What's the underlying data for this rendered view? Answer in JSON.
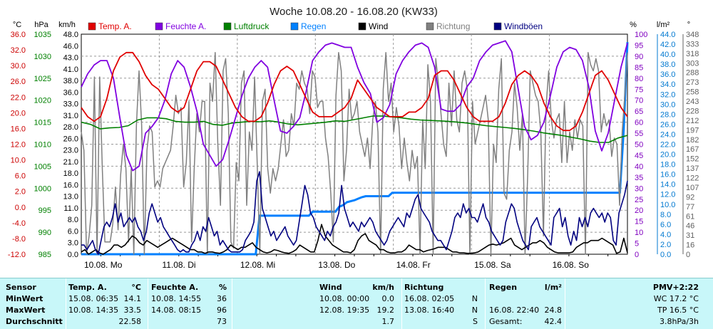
{
  "chart_data": {
    "type": "line",
    "title": "Woche 10.08.20 - 16.08.20 (KW33)",
    "x_labels": [
      "10.08. Mo",
      "11.08. Di",
      "12.08. Mi",
      "13.08. Do",
      "14.08. Fr",
      "15.08. Sa",
      "16.08. So"
    ],
    "axes": {
      "temp": {
        "unit": "°C",
        "ticks": [
          "36.0",
          "32.0",
          "30.0",
          "26.0",
          "22.0",
          "20.0",
          "16.0",
          "12.0",
          "10.0",
          "6.0",
          "2.0",
          "0.0",
          "-4.0",
          "-8.0",
          "-12.0"
        ],
        "color": "#cc0000",
        "range": [
          -12,
          36
        ]
      },
      "pressure": {
        "unit": "hPa",
        "ticks": [
          "1035",
          "1030",
          "1025",
          "1020",
          "1015",
          "1010",
          "1005",
          "1000",
          "995",
          "990",
          "985"
        ],
        "color": "#008000",
        "range": [
          985,
          1035
        ]
      },
      "wind": {
        "unit": "km/h",
        "ticks": [
          "48.0",
          "46.0",
          "43.0",
          "41.0",
          "38.0",
          "36.0",
          "33.0",
          "31.0",
          "28.0",
          "26.0",
          "23.0",
          "21.0",
          "18.0",
          "16.0",
          "13.0",
          "11.0",
          "8.0",
          "6.0",
          "3.0",
          "0.0"
        ],
        "color": "#000000",
        "range": [
          0,
          48
        ]
      },
      "humidity": {
        "unit": "%",
        "ticks": [
          "100",
          "95",
          "90",
          "85",
          "80",
          "75",
          "70",
          "65",
          "60",
          "55",
          "50",
          "45",
          "40",
          "35",
          "30",
          "25",
          "20",
          "15",
          "10",
          "5",
          "0"
        ],
        "color": "#8000c0",
        "range": [
          0,
          100
        ]
      },
      "rain": {
        "unit": "l/m²",
        "ticks": [
          "44.0",
          "42.0",
          "40.0",
          "38.0",
          "36.0",
          "34.0",
          "32.0",
          "30.0",
          "28.0",
          "26.0",
          "24.0",
          "22.0",
          "20.0",
          "18.0",
          "16.0",
          "14.0",
          "12.0",
          "10.0",
          "8.0",
          "6.0",
          "4.0",
          "2.0",
          "0.0"
        ],
        "color": "#0078d0",
        "range": [
          0,
          44
        ]
      },
      "direction": {
        "unit": "°",
        "ticks": [
          "348",
          "333",
          "318",
          "303",
          "288",
          "273",
          "258",
          "243",
          "228",
          "212",
          "197",
          "182",
          "167",
          "152",
          "137",
          "122",
          "107",
          "92",
          "77",
          "61",
          "46",
          "31",
          "16",
          "0"
        ],
        "color": "#606060",
        "range": [
          0,
          360
        ]
      }
    },
    "series": [
      {
        "name": "Temp. A.",
        "color": "#e00000",
        "axis": "temp",
        "values": [
          20,
          18,
          17,
          18,
          22,
          28,
          31,
          32,
          32,
          30,
          27,
          25,
          24,
          22,
          20,
          19,
          20,
          24,
          28,
          30,
          30,
          29,
          26,
          23,
          20,
          18,
          17,
          17,
          18,
          21,
          25,
          28,
          29,
          28,
          25,
          22,
          19,
          18,
          18,
          18,
          19,
          20,
          22,
          26,
          24,
          22,
          20,
          19,
          18,
          18,
          18,
          19,
          19,
          20,
          22,
          27,
          28,
          28,
          26,
          23,
          20,
          18,
          17,
          17,
          17,
          18,
          21,
          25,
          27,
          28,
          27,
          25,
          21,
          18,
          16,
          15,
          15,
          16,
          19,
          23,
          27,
          28,
          26,
          23,
          20,
          18
        ]
      },
      {
        "name": "Feuchte A.",
        "color": "#8000e0",
        "axis": "humidity",
        "values": [
          76,
          82,
          86,
          88,
          88,
          80,
          62,
          45,
          38,
          40,
          55,
          58,
          62,
          70,
          82,
          88,
          85,
          76,
          65,
          50,
          45,
          40,
          43,
          52,
          62,
          72,
          80,
          85,
          88,
          85,
          70,
          56,
          55,
          58,
          62,
          74,
          88,
          92,
          95,
          96,
          95,
          94,
          94,
          85,
          78,
          73,
          60,
          62,
          68,
          82,
          88,
          92,
          95,
          96,
          94,
          85,
          66,
          65,
          65,
          68,
          76,
          80,
          88,
          92,
          95,
          96,
          97,
          92,
          75,
          58,
          52,
          54,
          60,
          72,
          85,
          92,
          94,
          93,
          88,
          76,
          56,
          47,
          55,
          70,
          85,
          96
        ]
      },
      {
        "name": "Luftdruck",
        "color": "#008000",
        "axis": "pressure",
        "values": [
          1015,
          1014.5,
          1013.5,
          1013.7,
          1013.8,
          1014.2,
          1015.5,
          1016,
          1016,
          1015.8,
          1015.2,
          1015,
          1015,
          1015.2,
          1014.5,
          1014.3,
          1014.8,
          1015,
          1015.2,
          1015.1,
          1015.3,
          1015,
          1014.6,
          1014.4,
          1014.6,
          1014.8,
          1015,
          1015.3,
          1015.2,
          1015.6,
          1016,
          1016.4,
          1016.4,
          1016.2,
          1016,
          1015.7,
          1015.5,
          1015.4,
          1015.3,
          1015.2,
          1015,
          1014.8,
          1014.5,
          1014.2,
          1014,
          1013.8,
          1013.6,
          1013.3,
          1013,
          1012.6,
          1012.3,
          1012,
          1011.6,
          1011.2,
          1010.7,
          1010.4,
          1010.4,
          1011.4,
          1012
        ]
      },
      {
        "name": "Regen",
        "color": "#0080ff",
        "axis": "rain",
        "values": [
          0,
          0,
          0,
          0,
          0,
          0,
          0,
          0,
          0,
          0,
          0,
          0,
          0,
          0,
          0,
          0,
          0,
          0,
          0,
          0,
          0,
          0,
          0,
          0,
          0,
          0,
          0,
          0,
          0,
          0,
          0,
          0,
          0,
          0,
          0,
          0,
          0,
          0,
          0,
          0,
          0,
          0,
          0,
          0,
          0,
          0,
          0,
          7.7,
          7.7,
          7.7,
          7.7,
          7.7,
          7.7,
          7.7,
          7.7,
          7.7,
          7.7,
          7.7,
          7.7,
          7.7,
          7.7,
          8.5,
          8.5,
          8.5,
          8.5,
          8.5,
          8.5,
          8.5,
          9.5,
          9.8,
          10.4,
          10.6,
          10.8,
          11.1,
          11.4,
          11.6,
          11.6,
          11.6,
          11.6,
          11.6,
          11.6,
          11.6,
          12.3,
          12.3,
          12.3,
          12.3,
          12.3,
          12.3,
          12.3,
          12.3,
          12.3,
          12.3,
          12.3,
          12.3,
          12.3,
          12.3,
          12.3,
          12.3,
          12.3,
          12.3,
          12.3,
          12.3,
          12.3,
          12.3,
          12.3,
          12.3,
          12.3,
          12.3,
          12.3,
          12.3,
          12.3,
          12.3,
          12.3,
          12.3,
          12.3,
          12.3,
          12.3,
          12.3,
          12.3,
          12.3,
          12.3,
          12.3,
          12.3,
          12.3,
          12.3,
          12.3,
          12.3,
          12.3,
          12.3,
          12.3,
          12.3,
          12.3,
          12.3,
          12.3,
          12.3,
          12.3,
          12.3,
          12.3,
          12.3,
          12.3,
          12.3,
          12.3,
          12.3,
          24.8,
          42.4
        ]
      },
      {
        "name": "Wind",
        "color": "#000000",
        "axis": "wind",
        "values": [
          0.5,
          1,
          0,
          0.5,
          1,
          0.3,
          0,
          0.5,
          1,
          2,
          2,
          1.5,
          2,
          3,
          4,
          3.5,
          2.5,
          2,
          3,
          2.5,
          2,
          1.5,
          2,
          2.5,
          3,
          3.5,
          3,
          2.5,
          2,
          1.5,
          1,
          1,
          0.5,
          0.5,
          0.2,
          0.5,
          0.5,
          0.3,
          0.2,
          0.5,
          1,
          2,
          1.5,
          1,
          1.5,
          1.5,
          2,
          2.5,
          1.5,
          1,
          0.5,
          0.3,
          0.5,
          1,
          0.8,
          0.5,
          0.3,
          0.2,
          0.5,
          1,
          2,
          1.5,
          1,
          0.5,
          0.5,
          3,
          6.5,
          4,
          3,
          2,
          1.5,
          1,
          0.5,
          0.5,
          0.3,
          1,
          3,
          4,
          4.5,
          3,
          2.5,
          2,
          1,
          1,
          0.5,
          0.3,
          0.3,
          0.5,
          0.5,
          1,
          2,
          1.5,
          1,
          1,
          0.5,
          0.8,
          1,
          1.2,
          1.5,
          1.5,
          1.5,
          1,
          0.5,
          0.5,
          0.3,
          0.3,
          0.2,
          0.2,
          0.3,
          0.5,
          1,
          1.5,
          2,
          2.2,
          2,
          2.2,
          2.5,
          3,
          3.5,
          2,
          1.5,
          1,
          1.5,
          2,
          2.5,
          2.5,
          3,
          2.5,
          1.5,
          1,
          0.5,
          0.3,
          0.3,
          0.3,
          0.3,
          0.5,
          1.5,
          2,
          2.5,
          2.5,
          3,
          3,
          3,
          3.5,
          3,
          2.5,
          2,
          0.2,
          0.5,
          3.5,
          0.3
        ]
      },
      {
        "name": "Richtung",
        "color": "#808080",
        "axis": "direction",
        "values": [
          200,
          170,
          0,
          30,
          80,
          290,
          0,
          290,
          140,
          20,
          20,
          20,
          50,
          110,
          40,
          130,
          180,
          140,
          20,
          140,
          0,
          210,
          300,
          210,
          0,
          170,
          210,
          200,
          110,
          120,
          110,
          140,
          150,
          160,
          170,
          210,
          260,
          230,
          240,
          110,
          150,
          250,
          20,
          140,
          230,
          200,
          250,
          250,
          0,
          280,
          250,
          330,
          180,
          80,
          300,
          320,
          230,
          20,
          10,
          150,
          120,
          280,
          300,
          80,
          200,
          170,
          290,
          150,
          0,
          250,
          270,
          140,
          100,
          140,
          120,
          140,
          180,
          220,
          160,
          170,
          230,
          210,
          280,
          270,
          300,
          280,
          270,
          230,
          300,
          290,
          240,
          250,
          250,
          190,
          160,
          100,
          20,
          260,
          330,
          300,
          120,
          170,
          270,
          220,
          230,
          250,
          200,
          180,
          160,
          190,
          140,
          220,
          250,
          200,
          0,
          270,
          330,
          250,
          280,
          200,
          240,
          210,
          140,
          190,
          150,
          120,
          170,
          140,
          160,
          0,
          220,
          140,
          310,
          250,
          0,
          320,
          280,
          230,
          180,
          160,
          280,
          210,
          300,
          220,
          200,
          280,
          300,
          270,
          0,
          250,
          180,
          200,
          220,
          240,
          260,
          220,
          0,
          180,
          150,
          270,
          320,
          100,
          90,
          170,
          200,
          280,
          240,
          170,
          230,
          0,
          130,
          300,
          280,
          260,
          250,
          200,
          30,
          240,
          300,
          220,
          190,
          220,
          230,
          150,
          250,
          150,
          200,
          170,
          220,
          190,
          220,
          210,
          0,
          330,
          310,
          300,
          320,
          300,
          200,
          230,
          210,
          220,
          160,
          190,
          180,
          80,
          200,
          260,
          330
        ]
      },
      {
        "name": "Windböen",
        "color": "#000080",
        "axis": "wind",
        "values": [
          2,
          2,
          1,
          2,
          3,
          1,
          0,
          3,
          6,
          7,
          6,
          8,
          11,
          7,
          9,
          6,
          7,
          8,
          7,
          8,
          6,
          5,
          3,
          5,
          9,
          11,
          9,
          7,
          8,
          6,
          5,
          4,
          3,
          2,
          1,
          0.5,
          1,
          0.5,
          0.5,
          2,
          3,
          5,
          3,
          6,
          5,
          8,
          6,
          4,
          5,
          2,
          3,
          2,
          1,
          0.5,
          0.5,
          0.5,
          0.5,
          1,
          3,
          4,
          5,
          7,
          16,
          18,
          10,
          8,
          6,
          4,
          5,
          3,
          4,
          5,
          6,
          4,
          3,
          2,
          3,
          7,
          11,
          15,
          13,
          9,
          8,
          6,
          5,
          4,
          3,
          5,
          4,
          6,
          7,
          9,
          15,
          10,
          8,
          6,
          7,
          6,
          5,
          7,
          6,
          7,
          8,
          7,
          5,
          4,
          3,
          2,
          3,
          5,
          6,
          7,
          8,
          7,
          6,
          9,
          8,
          10,
          12,
          13,
          10,
          9,
          8,
          7,
          5,
          4,
          3,
          3,
          2,
          1,
          3,
          5,
          8,
          9,
          8,
          11,
          9,
          10,
          8,
          8,
          7,
          9,
          11,
          8,
          7,
          5,
          4,
          3,
          2,
          3,
          7,
          9,
          11,
          10,
          7,
          5,
          3,
          2,
          1,
          6,
          7,
          8,
          6,
          5,
          4,
          3,
          2,
          8,
          9,
          10,
          6,
          8,
          4,
          2,
          5,
          3,
          8,
          6,
          8,
          6,
          9,
          10,
          9,
          8,
          9,
          7,
          9,
          8,
          3,
          2,
          9,
          11,
          13,
          16
        ]
      }
    ]
  },
  "legend": [
    {
      "label": "Temp. A.",
      "color": "#e00000"
    },
    {
      "label": "Feuchte A.",
      "color": "#8000e0"
    },
    {
      "label": "Luftdruck",
      "color": "#008000"
    },
    {
      "label": "Regen",
      "color": "#0080ff"
    },
    {
      "label": "Wind",
      "color": "#000000"
    },
    {
      "label": "Richtung",
      "color": "#808080"
    },
    {
      "label": "Windböen",
      "color": "#000080"
    }
  ],
  "stats": {
    "headers": {
      "sensor": "Sensor",
      "temp": "Temp. A.",
      "temp_unit": "°C",
      "hum": "Feuchte A.",
      "hum_unit": "%",
      "wind": "Wind",
      "wind_unit": "km/h",
      "dir": "Richtung",
      "rain": "Regen",
      "rain_unit": "l/m²",
      "pmv": "PMV+2:22"
    },
    "row_labels": {
      "min": "MinWert",
      "max": "MaxWert",
      "avg": "Durchschnitt"
    },
    "temp": {
      "min_time": "15.08.  06:35",
      "min": "14.1",
      "max_time": "10.08.  14:35",
      "max": "33.5",
      "avg": "22.58"
    },
    "hum": {
      "min_time": "10.08.  14:55",
      "min": "36",
      "max_time": "14.08.  08:15",
      "max": "96",
      "avg": "73"
    },
    "wind": {
      "min_time": "10.08.  00:00",
      "min": "0.0",
      "max_time": "12.08.  19:35",
      "max": "19.2",
      "avg": "1.7"
    },
    "dir": {
      "min_time": "16.08.  02:05",
      "min": "N",
      "max_time": "13.08.  16:40",
      "max": "N",
      "avg": "S"
    },
    "rain": {
      "max_time": "16.08.  22:40",
      "max": "24.8",
      "total_label": "Gesamt:",
      "total": "42.4"
    },
    "pmv": {
      "wc": "WC 17.2 °C",
      "tp": "TP 16.5 °C",
      "trend": "3.8hPa/3h"
    }
  }
}
